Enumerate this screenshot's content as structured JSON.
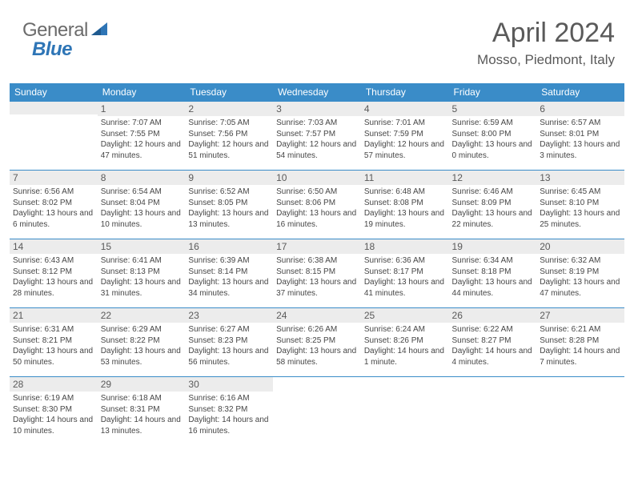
{
  "logo": {
    "text_general": "General",
    "text_blue": "Blue"
  },
  "title": {
    "month_year": "April 2024",
    "location": "Mosso, Piedmont, Italy"
  },
  "colors": {
    "header_bg": "#3a8cc8",
    "header_text": "#ffffff",
    "daynum_bg": "#ececec",
    "border": "#3a8cc8",
    "logo_gray": "#6b6b6b",
    "logo_blue": "#2e75b6",
    "body_text": "#464646"
  },
  "days_of_week": [
    "Sunday",
    "Monday",
    "Tuesday",
    "Wednesday",
    "Thursday",
    "Friday",
    "Saturday"
  ],
  "weeks": [
    [
      null,
      {
        "n": "1",
        "sr": "7:07 AM",
        "ss": "7:55 PM",
        "dl": "12 hours and 47 minutes."
      },
      {
        "n": "2",
        "sr": "7:05 AM",
        "ss": "7:56 PM",
        "dl": "12 hours and 51 minutes."
      },
      {
        "n": "3",
        "sr": "7:03 AM",
        "ss": "7:57 PM",
        "dl": "12 hours and 54 minutes."
      },
      {
        "n": "4",
        "sr": "7:01 AM",
        "ss": "7:59 PM",
        "dl": "12 hours and 57 minutes."
      },
      {
        "n": "5",
        "sr": "6:59 AM",
        "ss": "8:00 PM",
        "dl": "13 hours and 0 minutes."
      },
      {
        "n": "6",
        "sr": "6:57 AM",
        "ss": "8:01 PM",
        "dl": "13 hours and 3 minutes."
      }
    ],
    [
      {
        "n": "7",
        "sr": "6:56 AM",
        "ss": "8:02 PM",
        "dl": "13 hours and 6 minutes."
      },
      {
        "n": "8",
        "sr": "6:54 AM",
        "ss": "8:04 PM",
        "dl": "13 hours and 10 minutes."
      },
      {
        "n": "9",
        "sr": "6:52 AM",
        "ss": "8:05 PM",
        "dl": "13 hours and 13 minutes."
      },
      {
        "n": "10",
        "sr": "6:50 AM",
        "ss": "8:06 PM",
        "dl": "13 hours and 16 minutes."
      },
      {
        "n": "11",
        "sr": "6:48 AM",
        "ss": "8:08 PM",
        "dl": "13 hours and 19 minutes."
      },
      {
        "n": "12",
        "sr": "6:46 AM",
        "ss": "8:09 PM",
        "dl": "13 hours and 22 minutes."
      },
      {
        "n": "13",
        "sr": "6:45 AM",
        "ss": "8:10 PM",
        "dl": "13 hours and 25 minutes."
      }
    ],
    [
      {
        "n": "14",
        "sr": "6:43 AM",
        "ss": "8:12 PM",
        "dl": "13 hours and 28 minutes."
      },
      {
        "n": "15",
        "sr": "6:41 AM",
        "ss": "8:13 PM",
        "dl": "13 hours and 31 minutes."
      },
      {
        "n": "16",
        "sr": "6:39 AM",
        "ss": "8:14 PM",
        "dl": "13 hours and 34 minutes."
      },
      {
        "n": "17",
        "sr": "6:38 AM",
        "ss": "8:15 PM",
        "dl": "13 hours and 37 minutes."
      },
      {
        "n": "18",
        "sr": "6:36 AM",
        "ss": "8:17 PM",
        "dl": "13 hours and 41 minutes."
      },
      {
        "n": "19",
        "sr": "6:34 AM",
        "ss": "8:18 PM",
        "dl": "13 hours and 44 minutes."
      },
      {
        "n": "20",
        "sr": "6:32 AM",
        "ss": "8:19 PM",
        "dl": "13 hours and 47 minutes."
      }
    ],
    [
      {
        "n": "21",
        "sr": "6:31 AM",
        "ss": "8:21 PM",
        "dl": "13 hours and 50 minutes."
      },
      {
        "n": "22",
        "sr": "6:29 AM",
        "ss": "8:22 PM",
        "dl": "13 hours and 53 minutes."
      },
      {
        "n": "23",
        "sr": "6:27 AM",
        "ss": "8:23 PM",
        "dl": "13 hours and 56 minutes."
      },
      {
        "n": "24",
        "sr": "6:26 AM",
        "ss": "8:25 PM",
        "dl": "13 hours and 58 minutes."
      },
      {
        "n": "25",
        "sr": "6:24 AM",
        "ss": "8:26 PM",
        "dl": "14 hours and 1 minute."
      },
      {
        "n": "26",
        "sr": "6:22 AM",
        "ss": "8:27 PM",
        "dl": "14 hours and 4 minutes."
      },
      {
        "n": "27",
        "sr": "6:21 AM",
        "ss": "8:28 PM",
        "dl": "14 hours and 7 minutes."
      }
    ],
    [
      {
        "n": "28",
        "sr": "6:19 AM",
        "ss": "8:30 PM",
        "dl": "14 hours and 10 minutes."
      },
      {
        "n": "29",
        "sr": "6:18 AM",
        "ss": "8:31 PM",
        "dl": "14 hours and 13 minutes."
      },
      {
        "n": "30",
        "sr": "6:16 AM",
        "ss": "8:32 PM",
        "dl": "14 hours and 16 minutes."
      },
      null,
      null,
      null,
      null
    ]
  ],
  "labels": {
    "sunrise": "Sunrise:",
    "sunset": "Sunset:",
    "daylight": "Daylight:"
  }
}
